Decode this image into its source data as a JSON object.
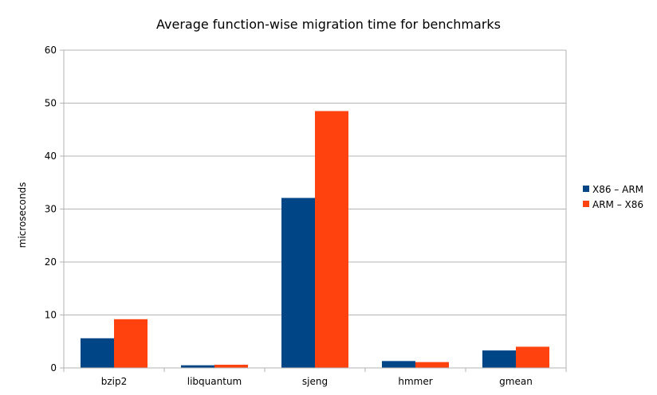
{
  "chart_data": {
    "type": "bar",
    "title": "Average function-wise migration time for benchmarks",
    "xlabel": "",
    "ylabel": "microseconds",
    "categories": [
      "bzip2",
      "libquantum",
      "sjeng",
      "hmmer",
      "gmean"
    ],
    "ylim": [
      0,
      60
    ],
    "yticks": [
      0,
      10,
      20,
      30,
      40,
      50,
      60
    ],
    "grid": true,
    "legend_position": "right",
    "series": [
      {
        "name": "X86 – ARM",
        "color": "#004586",
        "values": [
          5.6,
          0.5,
          32.1,
          1.3,
          3.3
        ]
      },
      {
        "name": "ARM – X86",
        "color": "#FF420E",
        "values": [
          9.2,
          0.6,
          48.5,
          1.1,
          4.0
        ]
      }
    ]
  }
}
